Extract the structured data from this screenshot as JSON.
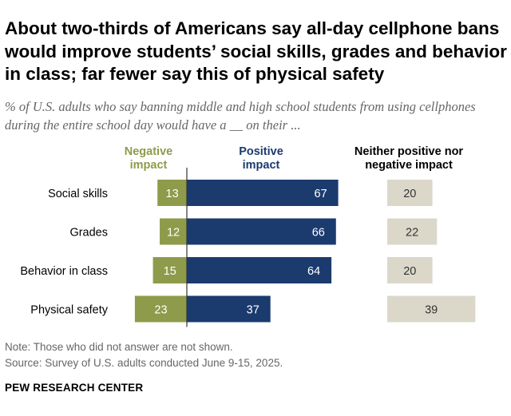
{
  "title": "About two-thirds of Americans say all-day cellphone bans would improve students’ social skills, grades and behavior in class; far fewer say this of physical safety",
  "subtitle": "% of U.S. adults who say banning middle and high school students from using cellphones during the entire school day would have a __ on their ...",
  "chart_data": {
    "type": "bar",
    "categories": [
      "Social skills",
      "Grades",
      "Behavior in class",
      "Physical safety"
    ],
    "series": [
      {
        "name": "Negative impact",
        "label_lines": [
          "Negative",
          "impact"
        ],
        "color": "#8E9B4A",
        "text_color": "#ffffff",
        "values": [
          13,
          12,
          15,
          23
        ]
      },
      {
        "name": "Positive impact",
        "label_lines": [
          "Positive",
          "impact"
        ],
        "color": "#1B3B6F",
        "text_color": "#ffffff",
        "values": [
          67,
          66,
          64,
          37
        ]
      },
      {
        "name": "Neither positive nor negative impact",
        "label_lines": [
          "Neither positive nor",
          "negative impact"
        ],
        "color": "#DBD8CA",
        "text_color": "#333333",
        "values": [
          20,
          22,
          20,
          39
        ]
      }
    ],
    "label_colors": {
      "negative": "#8E9B4A",
      "positive": "#1B3B6F",
      "neither": "#000000"
    }
  },
  "notes": {
    "note": "Note: Those who did not answer are not shown.",
    "source": "Source: Survey of U.S. adults conducted June 9-15, 2025."
  },
  "brand": "PEW RESEARCH CENTER"
}
